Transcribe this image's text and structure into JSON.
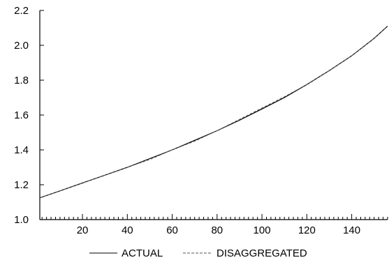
{
  "chart_data": {
    "type": "line",
    "xlim": [
      1,
      156
    ],
    "ylim": [
      1.0,
      2.2
    ],
    "x_ticks": [
      20,
      40,
      60,
      80,
      100,
      120,
      140
    ],
    "y_ticks": [
      1.0,
      1.2,
      1.4,
      1.6,
      1.8,
      2.0,
      2.2
    ],
    "x_tick_labels": [
      "20",
      "40",
      "60",
      "80",
      "100",
      "120",
      "140"
    ],
    "y_tick_labels": [
      "1.0",
      "1.2",
      "1.4",
      "1.6",
      "1.8",
      "2.0",
      "2.2"
    ],
    "x_minor_step": 2,
    "grid": false,
    "legend_position": "bottom",
    "x": [
      1,
      10,
      20,
      30,
      40,
      50,
      60,
      70,
      80,
      90,
      100,
      110,
      120,
      130,
      140,
      150,
      156
    ],
    "series": [
      {
        "name": "ACTUAL",
        "style": "solid",
        "color": "#000000",
        "values": [
          1.125,
          1.165,
          1.21,
          1.255,
          1.3,
          1.35,
          1.4,
          1.455,
          1.51,
          1.57,
          1.635,
          1.7,
          1.775,
          1.855,
          1.94,
          2.04,
          2.11
        ]
      },
      {
        "name": "DISAGGREGATED",
        "style": "dashed",
        "color": "#555555",
        "values": [
          1.125,
          1.165,
          1.21,
          1.255,
          1.3,
          1.345,
          1.4,
          1.45,
          1.51,
          1.575,
          1.64,
          1.705,
          1.775,
          1.855,
          1.94,
          2.04,
          2.11
        ]
      }
    ]
  }
}
